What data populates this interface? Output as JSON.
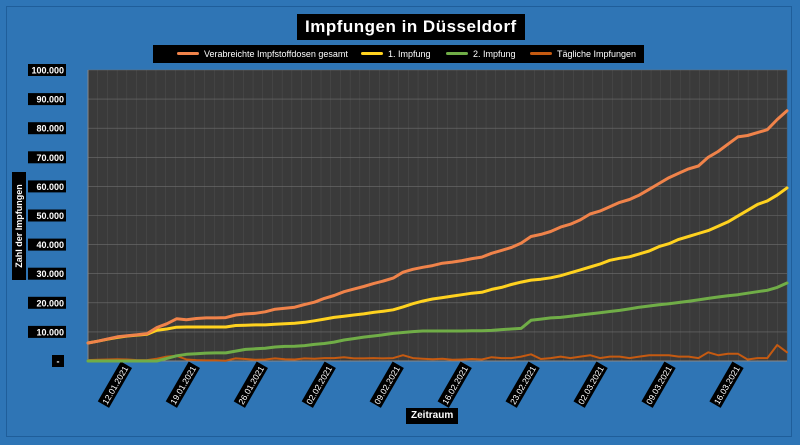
{
  "chart_data": {
    "type": "line",
    "title": "Impfungen in Düsseldorf",
    "xlabel": "Zeitraum",
    "ylabel": "Zahl der Impfungen",
    "ylim": [
      0,
      100000
    ],
    "y_ticks": [
      "-",
      "10.000",
      "20.000",
      "30.000",
      "40.000",
      "50.000",
      "60.000",
      "70.000",
      "80.000",
      "90.000",
      "100.000"
    ],
    "x_tick_labels": [
      "12.01.2021",
      "19.01.2021",
      "26.01.2021",
      "02.02.2021",
      "09.02.2021",
      "16.02.2021",
      "23.02.2021",
      "02.03.2021",
      "09.03.2021",
      "16.03.2021"
    ],
    "x_start": "08.01.2021",
    "x_end": "21.03.2021",
    "grid": true,
    "legend_position": "top",
    "series": [
      {
        "name": "Verabreichte Impfstoffdosen gesamt",
        "color": "#f0834a",
        "values": [
          6200,
          6800,
          7600,
          8300,
          8700,
          9000,
          9400,
          11500,
          12800,
          14500,
          14200,
          14600,
          14800,
          14800,
          14900,
          15800,
          16200,
          16400,
          16900,
          17800,
          18100,
          18500,
          19400,
          20200,
          21500,
          22500,
          23800,
          24700,
          25600,
          26600,
          27500,
          28500,
          30500,
          31500,
          32200,
          32800,
          33600,
          34000,
          34500,
          35200,
          35700,
          37000,
          38000,
          39000,
          40500,
          42800,
          43500,
          44500,
          46000,
          47000,
          48500,
          50500,
          51500,
          53000,
          54500,
          55500,
          57000,
          59000,
          61000,
          63000,
          64500,
          66000,
          67000,
          70000,
          72000,
          74500,
          77000,
          77500,
          78500,
          79500,
          83000,
          86000
        ]
      },
      {
        "name": "1. Impfung",
        "color": "#ffd21f",
        "values": [
          6200,
          6800,
          7500,
          8100,
          8600,
          8900,
          9200,
          10600,
          11000,
          11600,
          11700,
          11700,
          11700,
          11700,
          11700,
          12200,
          12300,
          12400,
          12400,
          12600,
          12800,
          13000,
          13300,
          13800,
          14400,
          15000,
          15400,
          15800,
          16200,
          16700,
          17100,
          17600,
          18600,
          19700,
          20600,
          21300,
          21800,
          22300,
          22800,
          23300,
          23600,
          24600,
          25300,
          26300,
          27100,
          27800,
          28100,
          28600,
          29300,
          30300,
          31300,
          32300,
          33300,
          34600,
          35300,
          35800,
          36800,
          37800,
          39300,
          40300,
          41800,
          42800,
          43800,
          44800,
          46300,
          47800,
          49800,
          51800,
          53800,
          55000,
          57000,
          59500
        ]
      },
      {
        "name": "2. Impfung",
        "color": "#70ad47",
        "values": [
          0,
          0,
          0,
          0,
          0,
          0,
          0,
          0,
          900,
          1800,
          2300,
          2500,
          2700,
          2800,
          2800,
          3400,
          4000,
          4200,
          4400,
          4800,
          5000,
          5100,
          5300,
          5700,
          6000,
          6500,
          7200,
          7700,
          8200,
          8600,
          9000,
          9500,
          9800,
          10100,
          10300,
          10300,
          10300,
          10300,
          10300,
          10400,
          10400,
          10500,
          10800,
          11000,
          11200,
          14000,
          14400,
          14800,
          15000,
          15400,
          15800,
          16200,
          16600,
          17000,
          17400,
          17900,
          18500,
          18900,
          19300,
          19700,
          20100,
          20500,
          21000,
          21500,
          22000,
          22400,
          22800,
          23300,
          23800,
          24300,
          25300,
          26800
        ]
      },
      {
        "name": "Tägliche Impfungen",
        "color": "#c55a11",
        "values": [
          300,
          400,
          500,
          600,
          500,
          300,
          300,
          800,
          1500,
          1800,
          500,
          300,
          200,
          200,
          100,
          900,
          700,
          400,
          500,
          900,
          600,
          500,
          900,
          800,
          1000,
          1000,
          1300,
          900,
          900,
          1000,
          900,
          1000,
          2000,
          1000,
          800,
          600,
          800,
          400,
          500,
          700,
          500,
          1300,
          1000,
          1000,
          1500,
          2300,
          700,
          1000,
          1500,
          1000,
          1500,
          2000,
          1000,
          1500,
          1500,
          1000,
          1500,
          2000,
          2000,
          2000,
          1500,
          1500,
          1000,
          3000,
          2000,
          2500,
          2500,
          500,
          1000,
          1000,
          5500,
          3000
        ]
      }
    ]
  }
}
